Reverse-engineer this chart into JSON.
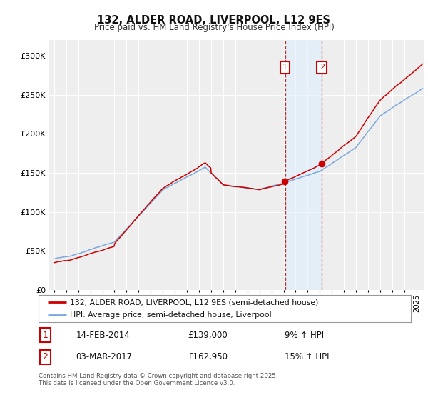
{
  "title": "132, ALDER ROAD, LIVERPOOL, L12 9ES",
  "subtitle": "Price paid vs. HM Land Registry's House Price Index (HPI)",
  "red_label": "132, ALDER ROAD, LIVERPOOL, L12 9ES (semi-detached house)",
  "blue_label": "HPI: Average price, semi-detached house, Liverpool",
  "annotation1_date": "14-FEB-2014",
  "annotation1_price": "£139,000",
  "annotation1_hpi": "9% ↑ HPI",
  "annotation2_date": "03-MAR-2017",
  "annotation2_price": "£162,950",
  "annotation2_hpi": "15% ↑ HPI",
  "footnote": "Contains HM Land Registry data © Crown copyright and database right 2025.\nThis data is licensed under the Open Government Licence v3.0.",
  "ylim": [
    0,
    320000
  ],
  "yticks": [
    0,
    50000,
    100000,
    150000,
    200000,
    250000,
    300000
  ],
  "background_color": "#ffffff",
  "plot_bg_color": "#eeeeee",
  "grid_color": "#ffffff",
  "red_color": "#cc0000",
  "blue_color": "#7aaadd",
  "marker1_x": 2014.12,
  "marker2_x": 2017.17,
  "shade_color": "#ddeeff",
  "xstart": 1995,
  "xend": 2025
}
